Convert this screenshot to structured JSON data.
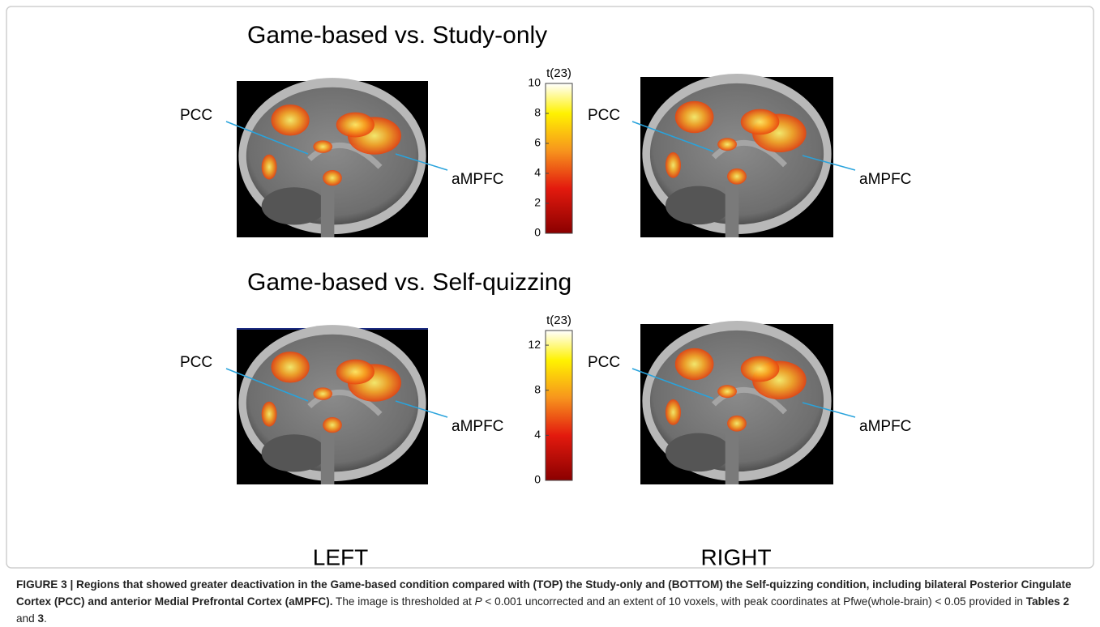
{
  "panels": [
    {
      "title": "Game-based vs. Study-only",
      "colorbar": {
        "label": "t(23)",
        "lim": [
          0,
          10
        ],
        "ticks": [
          0,
          2,
          4,
          6,
          8,
          10
        ]
      },
      "left_labels": [
        "PCC",
        "aMPFC"
      ],
      "right_labels": [
        "PCC",
        "aMPFC"
      ]
    },
    {
      "title": "Game-based vs. Self-quizzing",
      "colorbar": {
        "label": "t(23)",
        "lim": [
          0,
          13.3
        ],
        "ticks": [
          0,
          4,
          8,
          12
        ]
      },
      "left_labels": [
        "PCC",
        "aMPFC"
      ],
      "right_labels": [
        "PCC",
        "aMPFC"
      ]
    }
  ],
  "sides": [
    "LEFT",
    "RIGHT"
  ],
  "caption": {
    "segments": [
      {
        "text": "FIGURE 3 | Regions that showed greater deactivation in the Game-based condition compared with (TOP) the Study-only and (BOTTOM) the Self-quizzing condition, including bilateral Posterior Cingulate Cortex (PCC) and anterior Medial Prefrontal Cortex (aMPFC).",
        "style": "bold"
      },
      {
        "text": " The image is thresholded at ",
        "style": "normal"
      },
      {
        "text": "P",
        "style": "italic"
      },
      {
        "text": " < 0.001 uncorrected and an extent of 10 voxels, with peak coordinates at Pfwe(whole-brain) < 0.05 provided in ",
        "style": "normal"
      },
      {
        "text": "Tables 2",
        "style": "bold"
      },
      {
        "text": " and ",
        "style": "normal"
      },
      {
        "text": "3",
        "style": "bold"
      },
      {
        "text": ".",
        "style": "normal"
      }
    ]
  }
}
